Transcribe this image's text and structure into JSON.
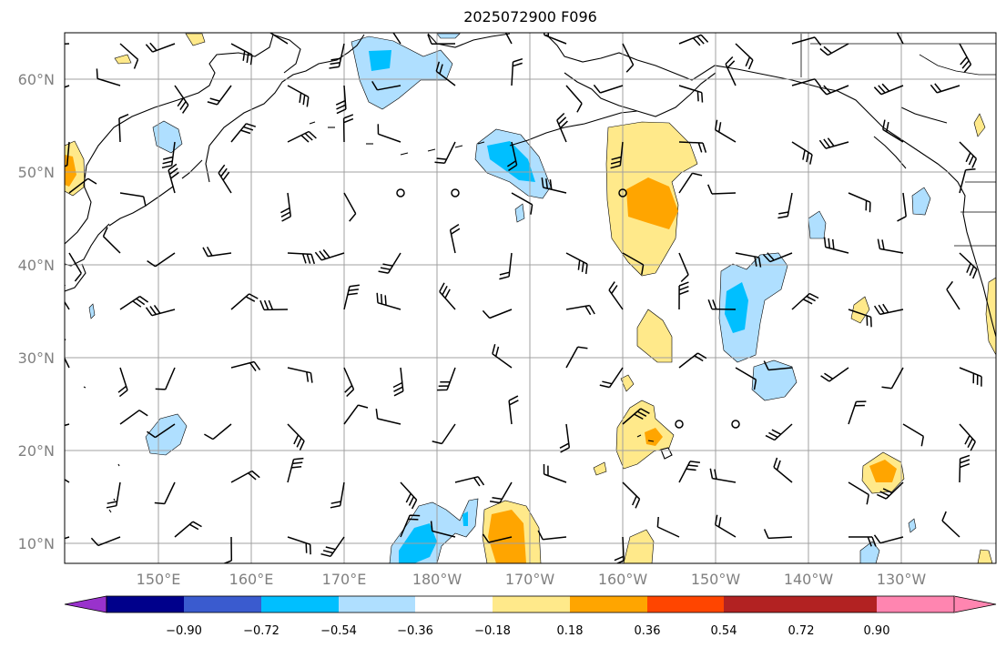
{
  "title": "2025072900 F096",
  "lat_labels": [
    "60°N",
    "50°N",
    "40°N",
    "30°N",
    "20°N",
    "10°N"
  ],
  "lon_labels": [
    "150°E",
    "160°E",
    "170°E",
    "180°W",
    "170°W",
    "160°W",
    "150°W",
    "140°W",
    "130°W"
  ],
  "colorbar": {
    "colors": [
      "#9932cc",
      "#00008b",
      "#3a5bcf",
      "#00bfff",
      "#afdfff",
      "#ffffff",
      "#ffe98a",
      "#ffa500",
      "#ff4500",
      "#b22222",
      "#ff85b0"
    ],
    "labels": [
      "−0.90",
      "−0.72",
      "−0.54",
      "−0.36",
      "−0.18",
      "0.18",
      "0.36",
      "0.54",
      "0.72",
      "0.90"
    ]
  }
}
